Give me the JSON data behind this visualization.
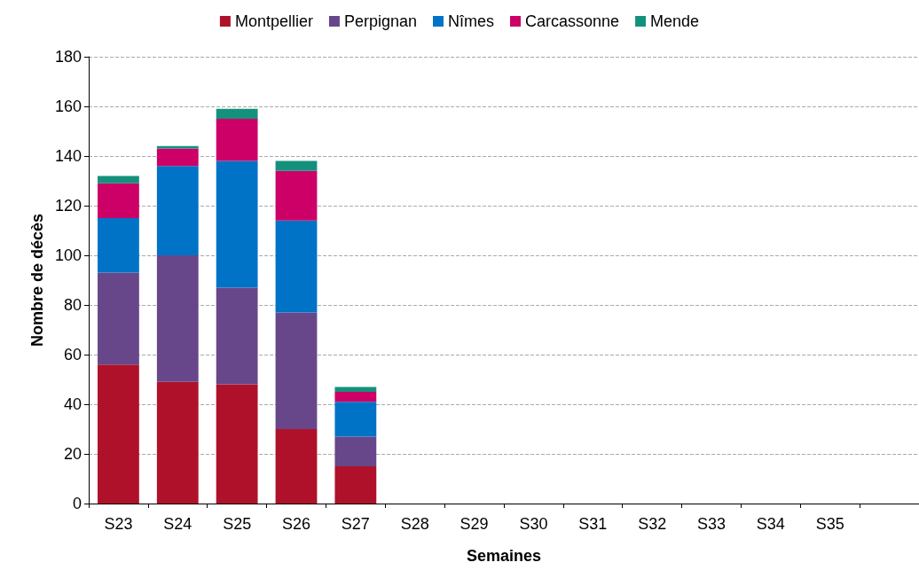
{
  "chart_data": {
    "type": "bar",
    "stacked": true,
    "xlabel": "Semaines",
    "ylabel": "Nombre de décès",
    "categories": [
      "S23",
      "S24",
      "S25",
      "S26",
      "S27",
      "S28",
      "S29",
      "S30",
      "S31",
      "S32",
      "S33",
      "S34",
      "S35",
      null
    ],
    "series": [
      {
        "name": "Montpellier",
        "color": "#b0112a",
        "values": [
          56,
          49,
          48,
          30,
          15,
          null,
          null,
          null,
          null,
          null,
          null,
          null,
          null,
          null
        ]
      },
      {
        "name": "Perpignan",
        "color": "#67478a",
        "values": [
          37,
          51,
          39,
          47,
          12,
          null,
          null,
          null,
          null,
          null,
          null,
          null,
          null,
          null
        ]
      },
      {
        "name": "Nîmes",
        "color": "#0073c6",
        "values": [
          22,
          36,
          51,
          37,
          14,
          null,
          null,
          null,
          null,
          null,
          null,
          null,
          null,
          null
        ]
      },
      {
        "name": "Carcassonne",
        "color": "#cc0066",
        "values": [
          14,
          7,
          17,
          20,
          4,
          null,
          null,
          null,
          null,
          null,
          null,
          null,
          null,
          null
        ]
      },
      {
        "name": "Mende",
        "color": "#14917c",
        "values": [
          3,
          1,
          4,
          4,
          2,
          null,
          null,
          null,
          null,
          null,
          null,
          null,
          null,
          null
        ]
      }
    ],
    "ylim": [
      0,
      180
    ],
    "yticks": [
      0,
      20,
      40,
      60,
      80,
      100,
      120,
      140,
      160,
      180
    ],
    "grid": "y",
    "legend": "top"
  }
}
